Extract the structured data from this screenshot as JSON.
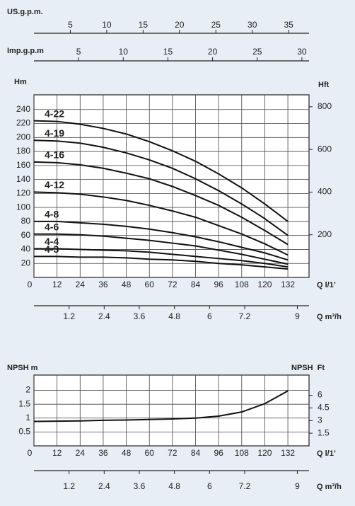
{
  "chart_data": [
    {
      "type": "axis",
      "title": "US.g.p.m.",
      "xlim": [
        0,
        37.8
      ],
      "xticks": [
        5,
        10,
        15,
        20,
        25,
        30,
        35
      ]
    },
    {
      "type": "axis",
      "title": "Imp.g.p.m",
      "xlim": [
        0,
        30.8
      ],
      "xticks": [
        5,
        10,
        15,
        20,
        25,
        30
      ]
    },
    {
      "type": "line",
      "y_label": "Hm",
      "y2_label": "Hft",
      "x_label": "Q l/1’",
      "x": [
        0,
        12,
        24,
        36,
        48,
        60,
        72,
        84,
        96,
        108,
        120,
        132
      ],
      "series": [
        {
          "name": "4-22",
          "color": "#111111",
          "values": [
            224,
            223,
            219,
            213,
            205,
            194,
            181,
            166,
            148,
            128,
            105,
            80
          ]
        },
        {
          "name": "4-19",
          "color": "#111111",
          "values": [
            196,
            195,
            192,
            186,
            178,
            168,
            156,
            141,
            124,
            105,
            84,
            60
          ]
        },
        {
          "name": "4-16",
          "color": "#111111",
          "values": [
            165,
            164,
            161,
            156,
            149,
            141,
            130,
            117,
            103,
            86,
            67,
            47
          ]
        },
        {
          "name": "4-12",
          "color": "#111111",
          "values": [
            122,
            121,
            119,
            115,
            110,
            103,
            95,
            86,
            74,
            62,
            48,
            32
          ]
        },
        {
          "name": "4-8",
          "color": "#111111",
          "values": [
            80,
            80,
            78,
            76,
            73,
            69,
            64,
            58,
            51,
            43,
            35,
            25
          ]
        },
        {
          "name": "4-6",
          "color": "#111111",
          "values": [
            62,
            62,
            61,
            59,
            56,
            53,
            49,
            45,
            39,
            33,
            26,
            19
          ]
        },
        {
          "name": "4-4",
          "color": "#111111",
          "values": [
            41,
            41,
            40,
            39,
            38,
            36,
            33,
            30,
            27,
            24,
            20,
            15
          ]
        },
        {
          "name": "4-3",
          "color": "#111111",
          "values": [
            30,
            30,
            29,
            29,
            28,
            26,
            25,
            23,
            20,
            18,
            15,
            12
          ]
        }
      ],
      "xlim": [
        0,
        143
      ],
      "xticks": [
        0,
        12,
        24,
        36,
        48,
        60,
        72,
        84,
        96,
        108,
        120,
        132
      ],
      "ylim": [
        0,
        261
      ],
      "yticks": [
        20,
        40,
        60,
        80,
        100,
        120,
        140,
        160,
        180,
        200,
        220,
        240
      ],
      "y2lim": [
        0,
        856
      ],
      "y2ticks": [
        200,
        400,
        600,
        800
      ],
      "grid": true
    },
    {
      "type": "axis",
      "title": "Q m³/h",
      "xlim": [
        0,
        9.4
      ],
      "xticks": [
        1.2,
        2.4,
        3.6,
        4.8,
        6,
        7.2,
        9
      ]
    },
    {
      "type": "line",
      "y_label": "NPSH m",
      "y2_label": "NPSH  Ft",
      "x_label": "Q l/1’",
      "x": [
        0,
        12,
        24,
        36,
        48,
        60,
        72,
        84,
        96,
        108,
        120,
        132
      ],
      "series": [
        {
          "name": "NPSH",
          "color": "#111111",
          "values": [
            0.88,
            0.89,
            0.9,
            0.92,
            0.93,
            0.95,
            0.97,
            1.0,
            1.07,
            1.22,
            1.52,
            1.98
          ]
        }
      ],
      "xlim": [
        0,
        143
      ],
      "xticks": [
        0,
        12,
        24,
        36,
        48,
        60,
        72,
        84,
        96,
        108,
        120,
        132
      ],
      "ylim": [
        0,
        2.55
      ],
      "yticks": [
        0.5,
        1,
        1.5,
        2
      ],
      "y2lim": [
        0,
        8.4
      ],
      "y2ticks": [
        1.5,
        3,
        4.5,
        6
      ],
      "grid": true
    },
    {
      "type": "axis",
      "title": "Q m³/h",
      "xlim": [
        0,
        9.4
      ],
      "xticks": [
        1.2,
        2.4,
        3.6,
        4.8,
        6,
        7.2,
        9
      ]
    }
  ]
}
